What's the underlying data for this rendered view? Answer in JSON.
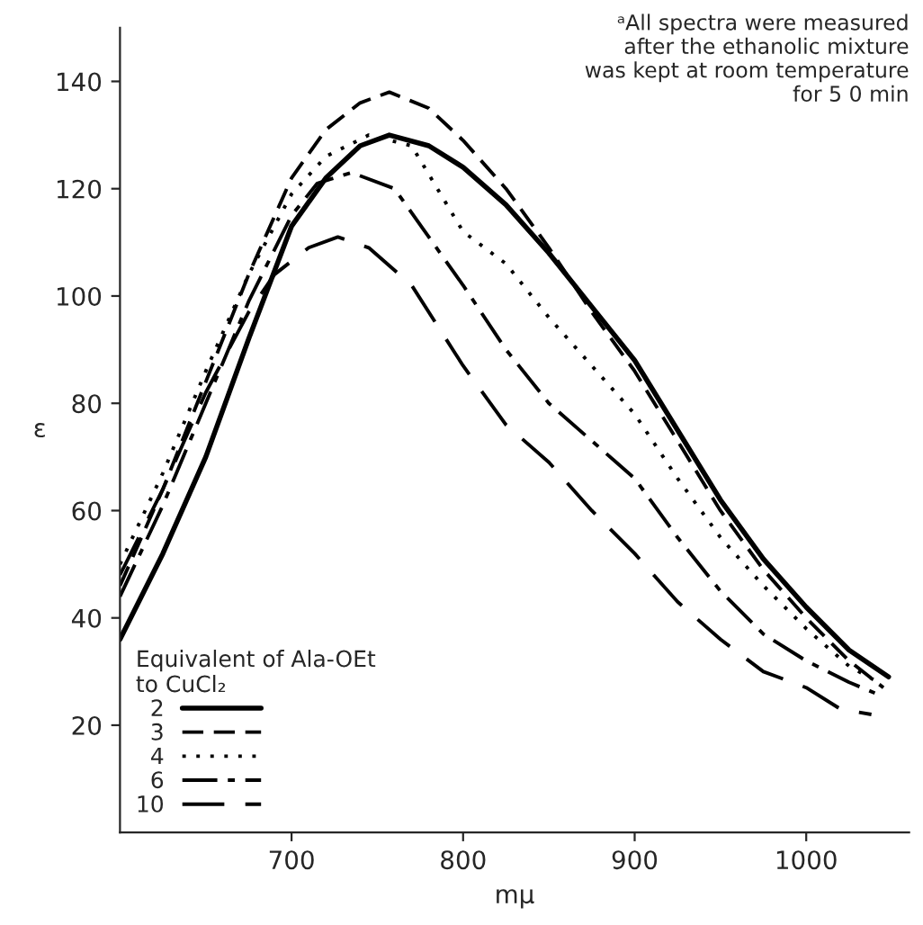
{
  "chart_data": {
    "type": "line",
    "xlabel": "mμ",
    "ylabel": "ε",
    "legend_title": "Equivalent of Ala-OEt\nto CuCl₂",
    "annotations": [
      "ᵃAll spectra were measured\nafter the ethanolic mixture\nwas kept at room temperature\nfor 5 0 min"
    ],
    "xlim": [
      600,
      1060
    ],
    "xticks": [
      700,
      800,
      900,
      1000
    ],
    "ylim": [
      0,
      150
    ],
    "yticks": [
      20,
      40,
      60,
      80,
      100,
      120,
      140
    ],
    "grid": false,
    "legend": "bottom left",
    "marker": "none",
    "series": [
      {
        "name": "2",
        "color": "#000000",
        "line_style": "solid",
        "x": [
          600,
          625,
          650,
          675,
          700,
          720,
          740,
          757,
          780,
          800,
          825,
          850,
          875,
          900,
          925,
          950,
          975,
          1000,
          1025,
          1048
        ],
        "values": [
          36,
          52,
          70,
          92,
          113,
          122,
          128,
          130,
          128,
          124,
          117,
          108,
          98,
          88,
          75,
          62,
          51,
          42,
          34,
          29
        ]
      },
      {
        "name": "3",
        "color": "#000000",
        "line_style": "dashed",
        "x": [
          600,
          625,
          650,
          675,
          700,
          720,
          740,
          757,
          780,
          800,
          825,
          850,
          875,
          900,
          925,
          950,
          975,
          1000,
          1025,
          1045
        ],
        "values": [
          46,
          64,
          84,
          104,
          122,
          131,
          136,
          138,
          135,
          129,
          120,
          109,
          97,
          86,
          73,
          60,
          49,
          40,
          32,
          27
        ]
      },
      {
        "name": "4",
        "color": "#000000",
        "line_style": "dotted",
        "x": [
          600,
          625,
          650,
          675,
          700,
          720,
          745,
          770,
          800,
          825,
          850,
          875,
          900,
          925,
          950,
          975,
          1000,
          1025,
          1042
        ],
        "values": [
          50,
          67,
          86,
          104,
          119,
          126,
          130,
          128,
          112,
          106,
          96,
          87,
          78,
          66,
          55,
          46,
          38,
          31,
          28
        ]
      },
      {
        "name": "6",
        "color": "#000000",
        "line_style": "dashed",
        "x": [
          600,
          625,
          650,
          675,
          700,
          715,
          735,
          760,
          800,
          825,
          850,
          875,
          900,
          925,
          950,
          975,
          1000,
          1025,
          1040
        ],
        "values": [
          44,
          61,
          80,
          99,
          115,
          121,
          123,
          120,
          102,
          90,
          80,
          73,
          66,
          55,
          45,
          37,
          32,
          28,
          26
        ]
      },
      {
        "name": "10",
        "color": "#000000",
        "line_style": "dashed",
        "x": [
          600,
          625,
          650,
          675,
          690,
          710,
          727,
          745,
          770,
          800,
          825,
          850,
          875,
          900,
          925,
          950,
          975,
          1000,
          1020,
          1038
        ],
        "values": [
          48,
          64,
          82,
          97,
          104,
          109,
          111,
          109,
          102,
          87,
          76,
          69,
          60,
          52,
          43,
          36,
          30,
          27,
          23,
          22
        ]
      }
    ]
  }
}
